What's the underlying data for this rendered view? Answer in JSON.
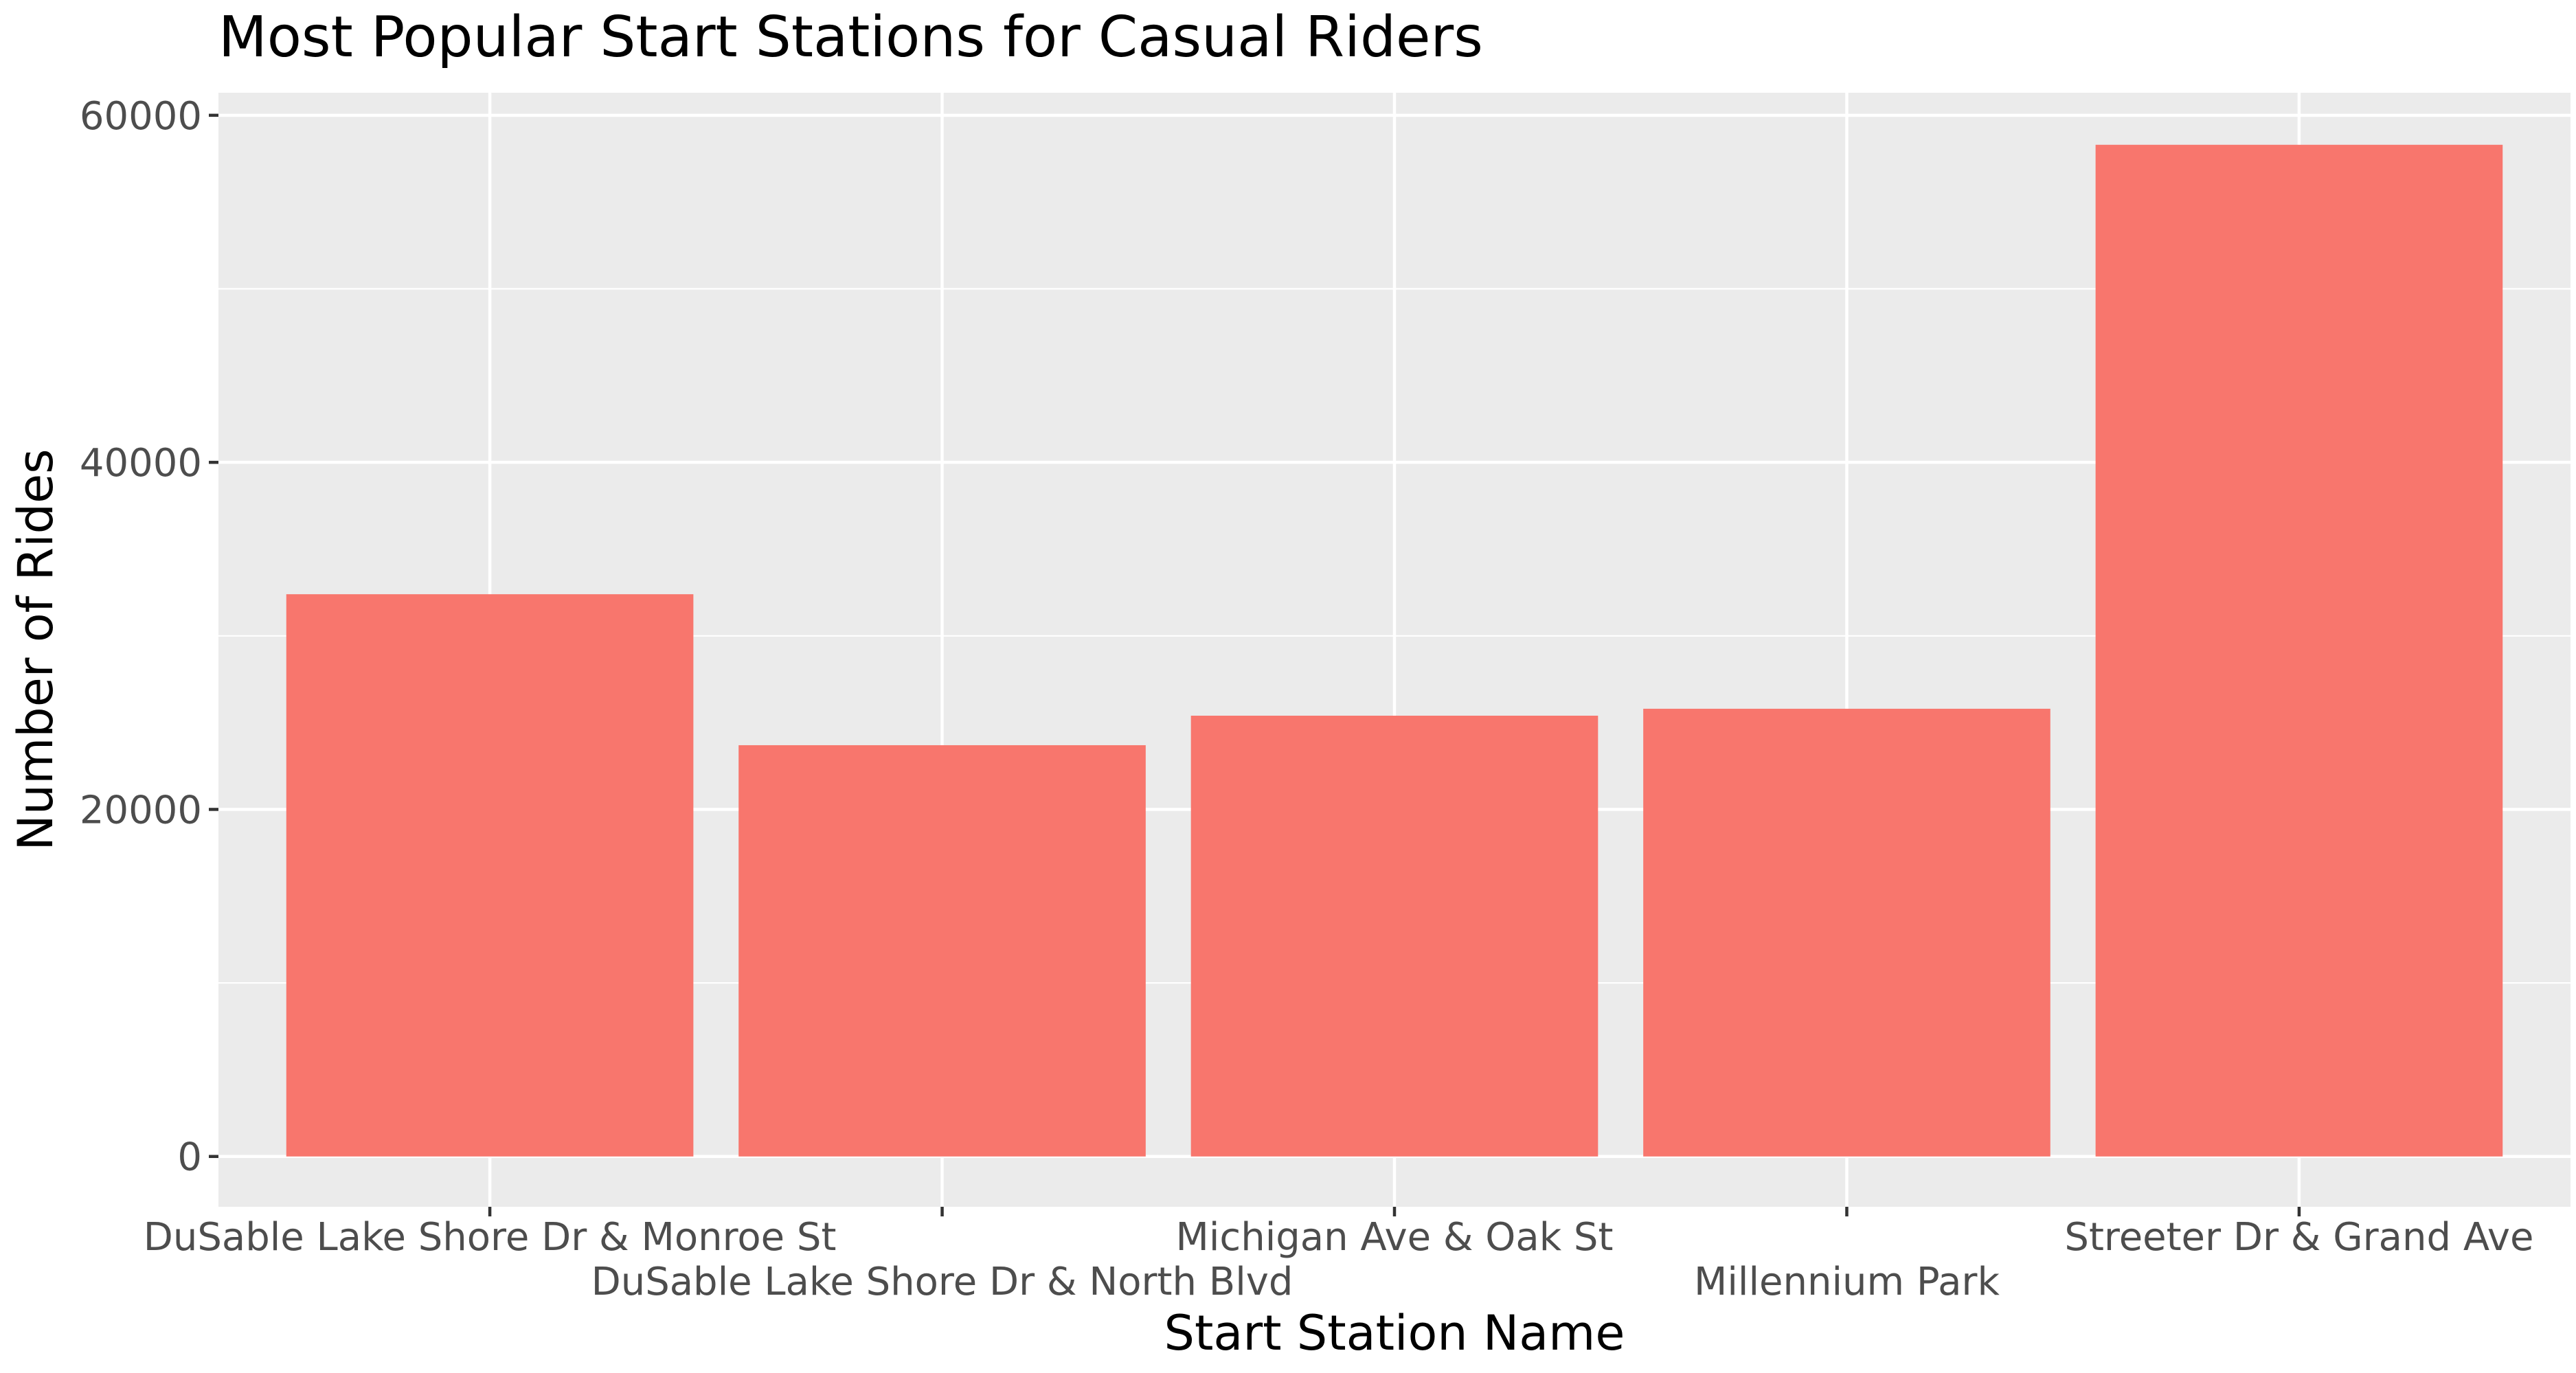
{
  "chart_data": {
    "type": "bar",
    "title": "Most Popular Start Stations for Casual Riders",
    "xlabel": "Start Station Name",
    "ylabel": "Number of Rides",
    "categories": [
      "DuSable Lake Shore Dr & Monroe St",
      "DuSable Lake Shore Dr & North Blvd",
      "Michigan Ave & Oak St",
      "Millennium Park",
      "Streeter Dr & Grand Ave"
    ],
    "values": [
      32400,
      23700,
      25400,
      25800,
      58300
    ],
    "ylim": [
      -2900,
      61300
    ],
    "yticks": [
      0,
      20000,
      40000,
      60000
    ],
    "ytick_labels": [
      "0",
      "20000",
      "40000",
      "60000"
    ],
    "grid": true,
    "bar_color": "#F8766D",
    "panel_background": "#EBEBEB",
    "grid_color": "#FFFFFF"
  }
}
